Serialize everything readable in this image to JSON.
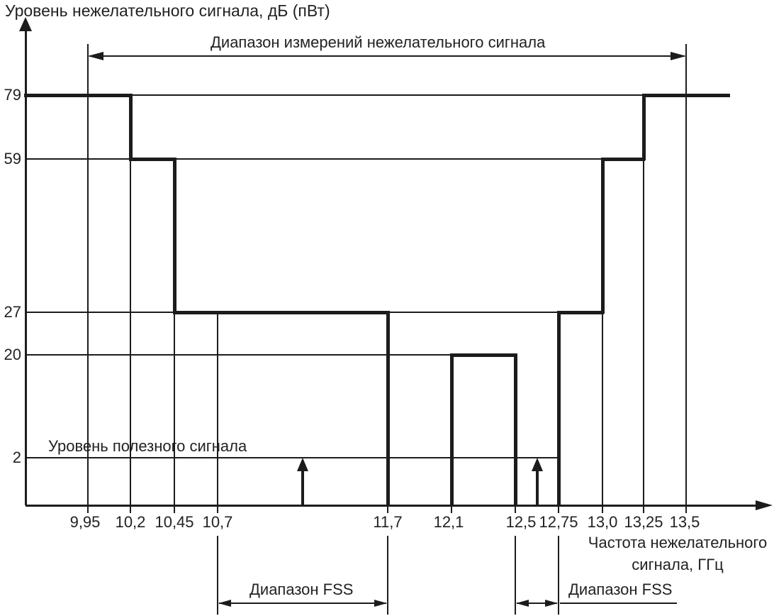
{
  "page": {
    "ylabel_title": "Уровень нежелательного сигнала, дБ (пВт)",
    "xlabel_line1": "Частота нежелательного",
    "xlabel_line2": "сигнала, ГГц",
    "measurement_range_label": "Диапазон измерений нежелательного сигнала",
    "useful_signal_label": "Уровень полезного сигнала",
    "fss_left_label": "Диапазон FSS",
    "fss_right_label": "Диапазон FSS"
  },
  "colors": {
    "line": "#1c1c1c",
    "text": "#222222",
    "background": "#ffffff"
  },
  "chart_data": {
    "type": "line",
    "subtype": "step-mask",
    "title": "",
    "ylabel": "Уровень нежелательного сигнала, дБ (пВт)",
    "xlabel": "Частота нежелательного сигнала, ГГц",
    "grid": false,
    "y_ticks": [
      79,
      59,
      27,
      20,
      2
    ],
    "x_tick_labels": [
      "9,95",
      "10,2",
      "10,45",
      "10,7",
      "11,7",
      "12,1",
      "12,5",
      "12,75",
      "13,0",
      "13,25",
      "13,5"
    ],
    "x_tick_values_ghz": [
      9.95,
      10.2,
      10.45,
      10.7,
      11.7,
      12.1,
      12.5,
      12.75,
      13.0,
      13.25,
      13.5
    ],
    "mask_polyline_ghz_db": [
      [
        null,
        79
      ],
      [
        10.2,
        79
      ],
      [
        10.2,
        59
      ],
      [
        10.45,
        59
      ],
      [
        10.45,
        27
      ],
      [
        11.7,
        27
      ],
      [
        11.7,
        0
      ],
      [
        12.1,
        0
      ],
      [
        12.1,
        20
      ],
      [
        12.5,
        20
      ],
      [
        12.5,
        0
      ],
      [
        12.75,
        0
      ],
      [
        12.75,
        27
      ],
      [
        13.0,
        27
      ],
      [
        13.0,
        59
      ],
      [
        13.25,
        59
      ],
      [
        13.25,
        79
      ],
      [
        null,
        79
      ]
    ],
    "useful_signal_level_db": 2,
    "measurement_range_ghz": [
      9.95,
      13.5
    ],
    "fss_ranges_ghz": [
      [
        10.7,
        11.7
      ],
      [
        12.5,
        12.75
      ]
    ]
  }
}
